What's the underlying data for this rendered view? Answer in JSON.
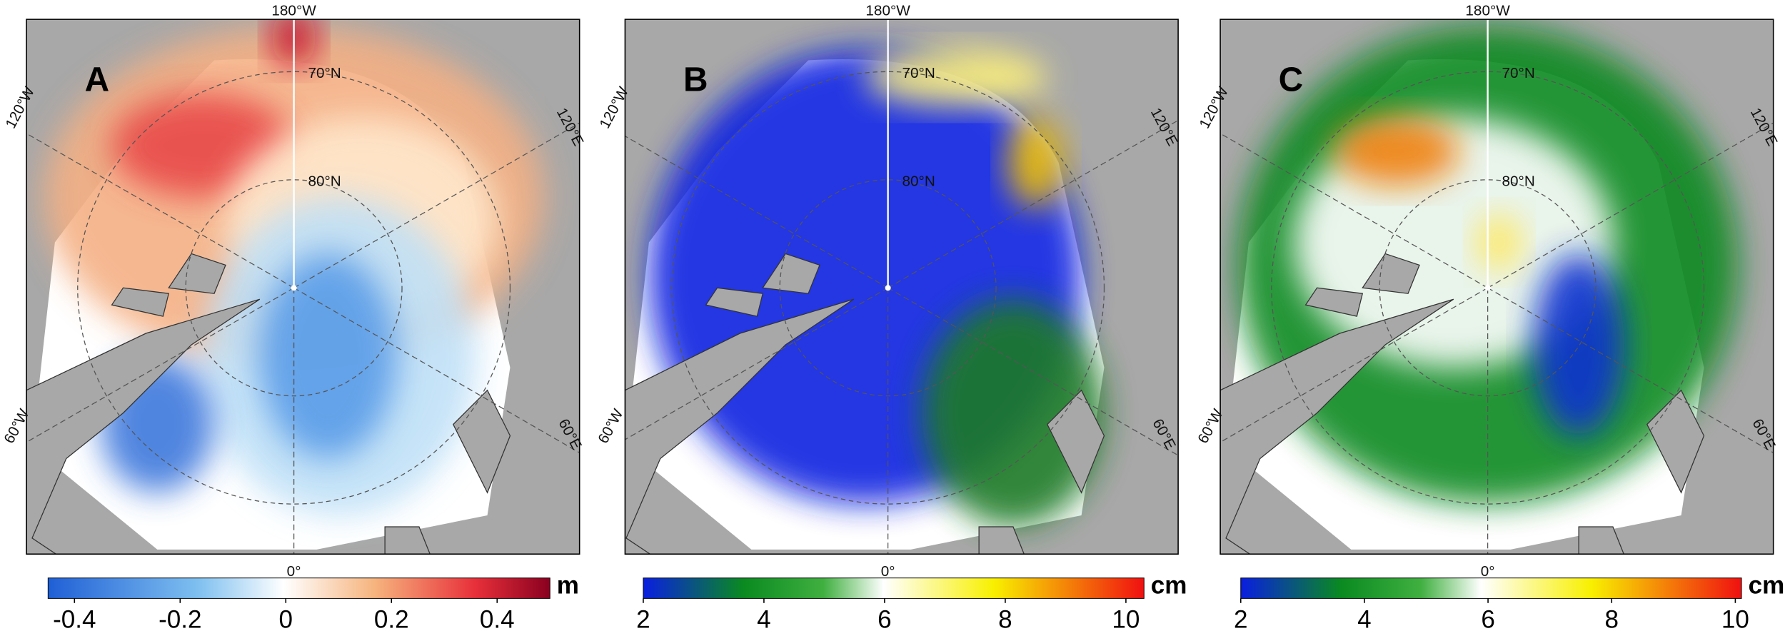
{
  "panels": [
    {
      "label": "A",
      "unit": "m",
      "scheme": "diverging",
      "colorbar": {
        "clim": [
          -0.45,
          0.5
        ],
        "ticks": [
          -0.4,
          -0.2,
          0,
          0.2,
          0.4
        ]
      },
      "annotations": [
        "180°W",
        "70°N",
        "80°N",
        "120°W",
        "120°E",
        "60°W",
        "60°E",
        "0°"
      ]
    },
    {
      "label": "B",
      "unit": "cm",
      "scheme": "sequential",
      "colorbar": {
        "clim": [
          2,
          10.3
        ],
        "ticks": [
          2,
          4,
          6,
          8,
          10
        ]
      },
      "annotations": [
        "180°W",
        "70°N",
        "80°N",
        "120°W",
        "120°E",
        "60°W",
        "60°E",
        "0°"
      ]
    },
    {
      "label": "C",
      "unit": "cm",
      "scheme": "sequential",
      "colorbar": {
        "clim": [
          2,
          10.1
        ],
        "ticks": [
          2,
          4,
          6,
          8,
          10
        ]
      },
      "annotations": [
        "180°W",
        "70°N",
        "80°N",
        "120°W",
        "120°E",
        "60°W",
        "60°E",
        "0°"
      ]
    }
  ]
}
